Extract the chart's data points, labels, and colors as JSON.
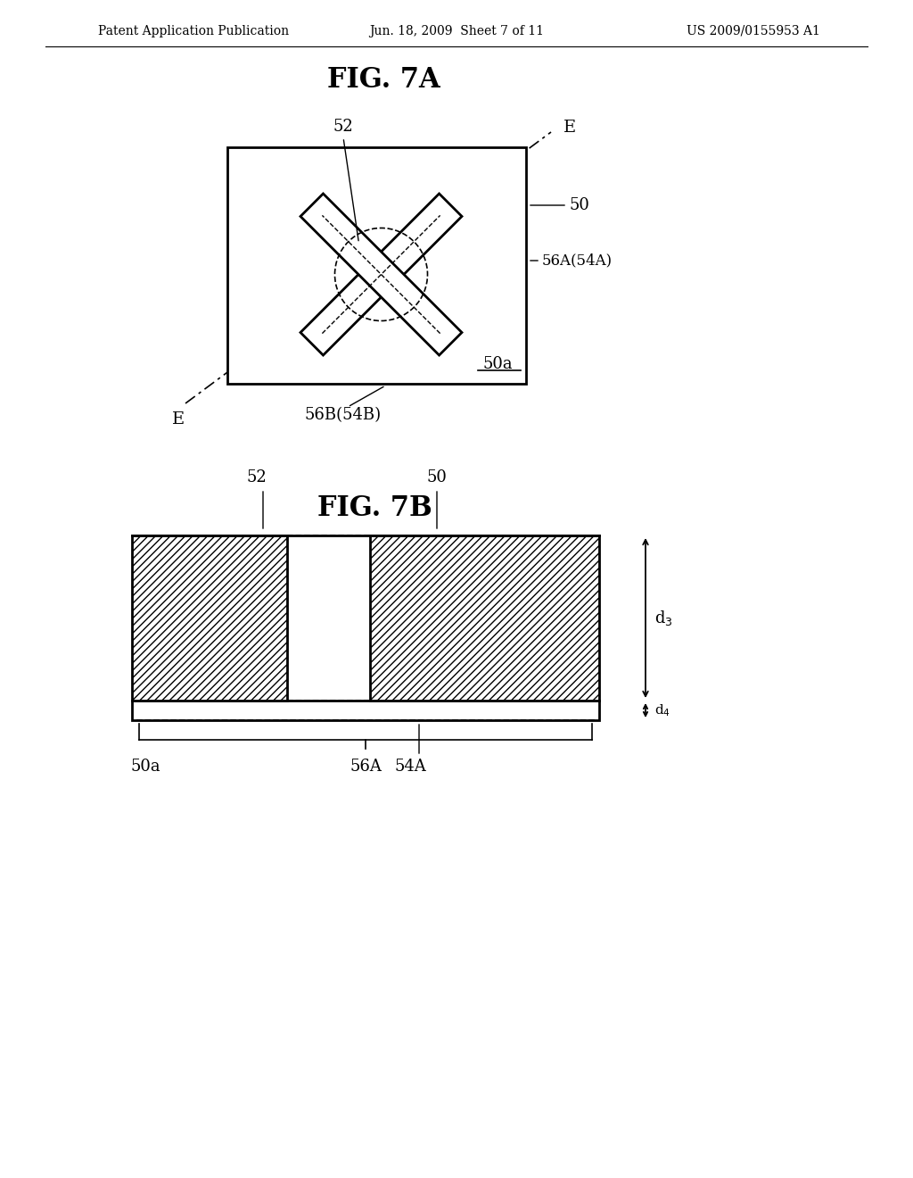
{
  "bg_color": "#ffffff",
  "header_left": "Patent Application Publication",
  "header_mid": "Jun. 18, 2009  Sheet 7 of 11",
  "header_right": "US 2009/0155953 A1",
  "fig7a_title": "FIG. 7A",
  "fig7b_title": "FIG. 7B",
  "labels": {
    "52_top": "52",
    "50_right": "50",
    "56A54A": "56A(54A)",
    "50a": "50a",
    "E_top": "E",
    "E_bot": "E",
    "56B54B": "56B(54B)",
    "52_bot": "52",
    "50_bot": "50",
    "50a_bot": "50a",
    "56A_bot": "56A",
    "54A_bot": "54A",
    "d3": "d3",
    "d4": "d4"
  }
}
